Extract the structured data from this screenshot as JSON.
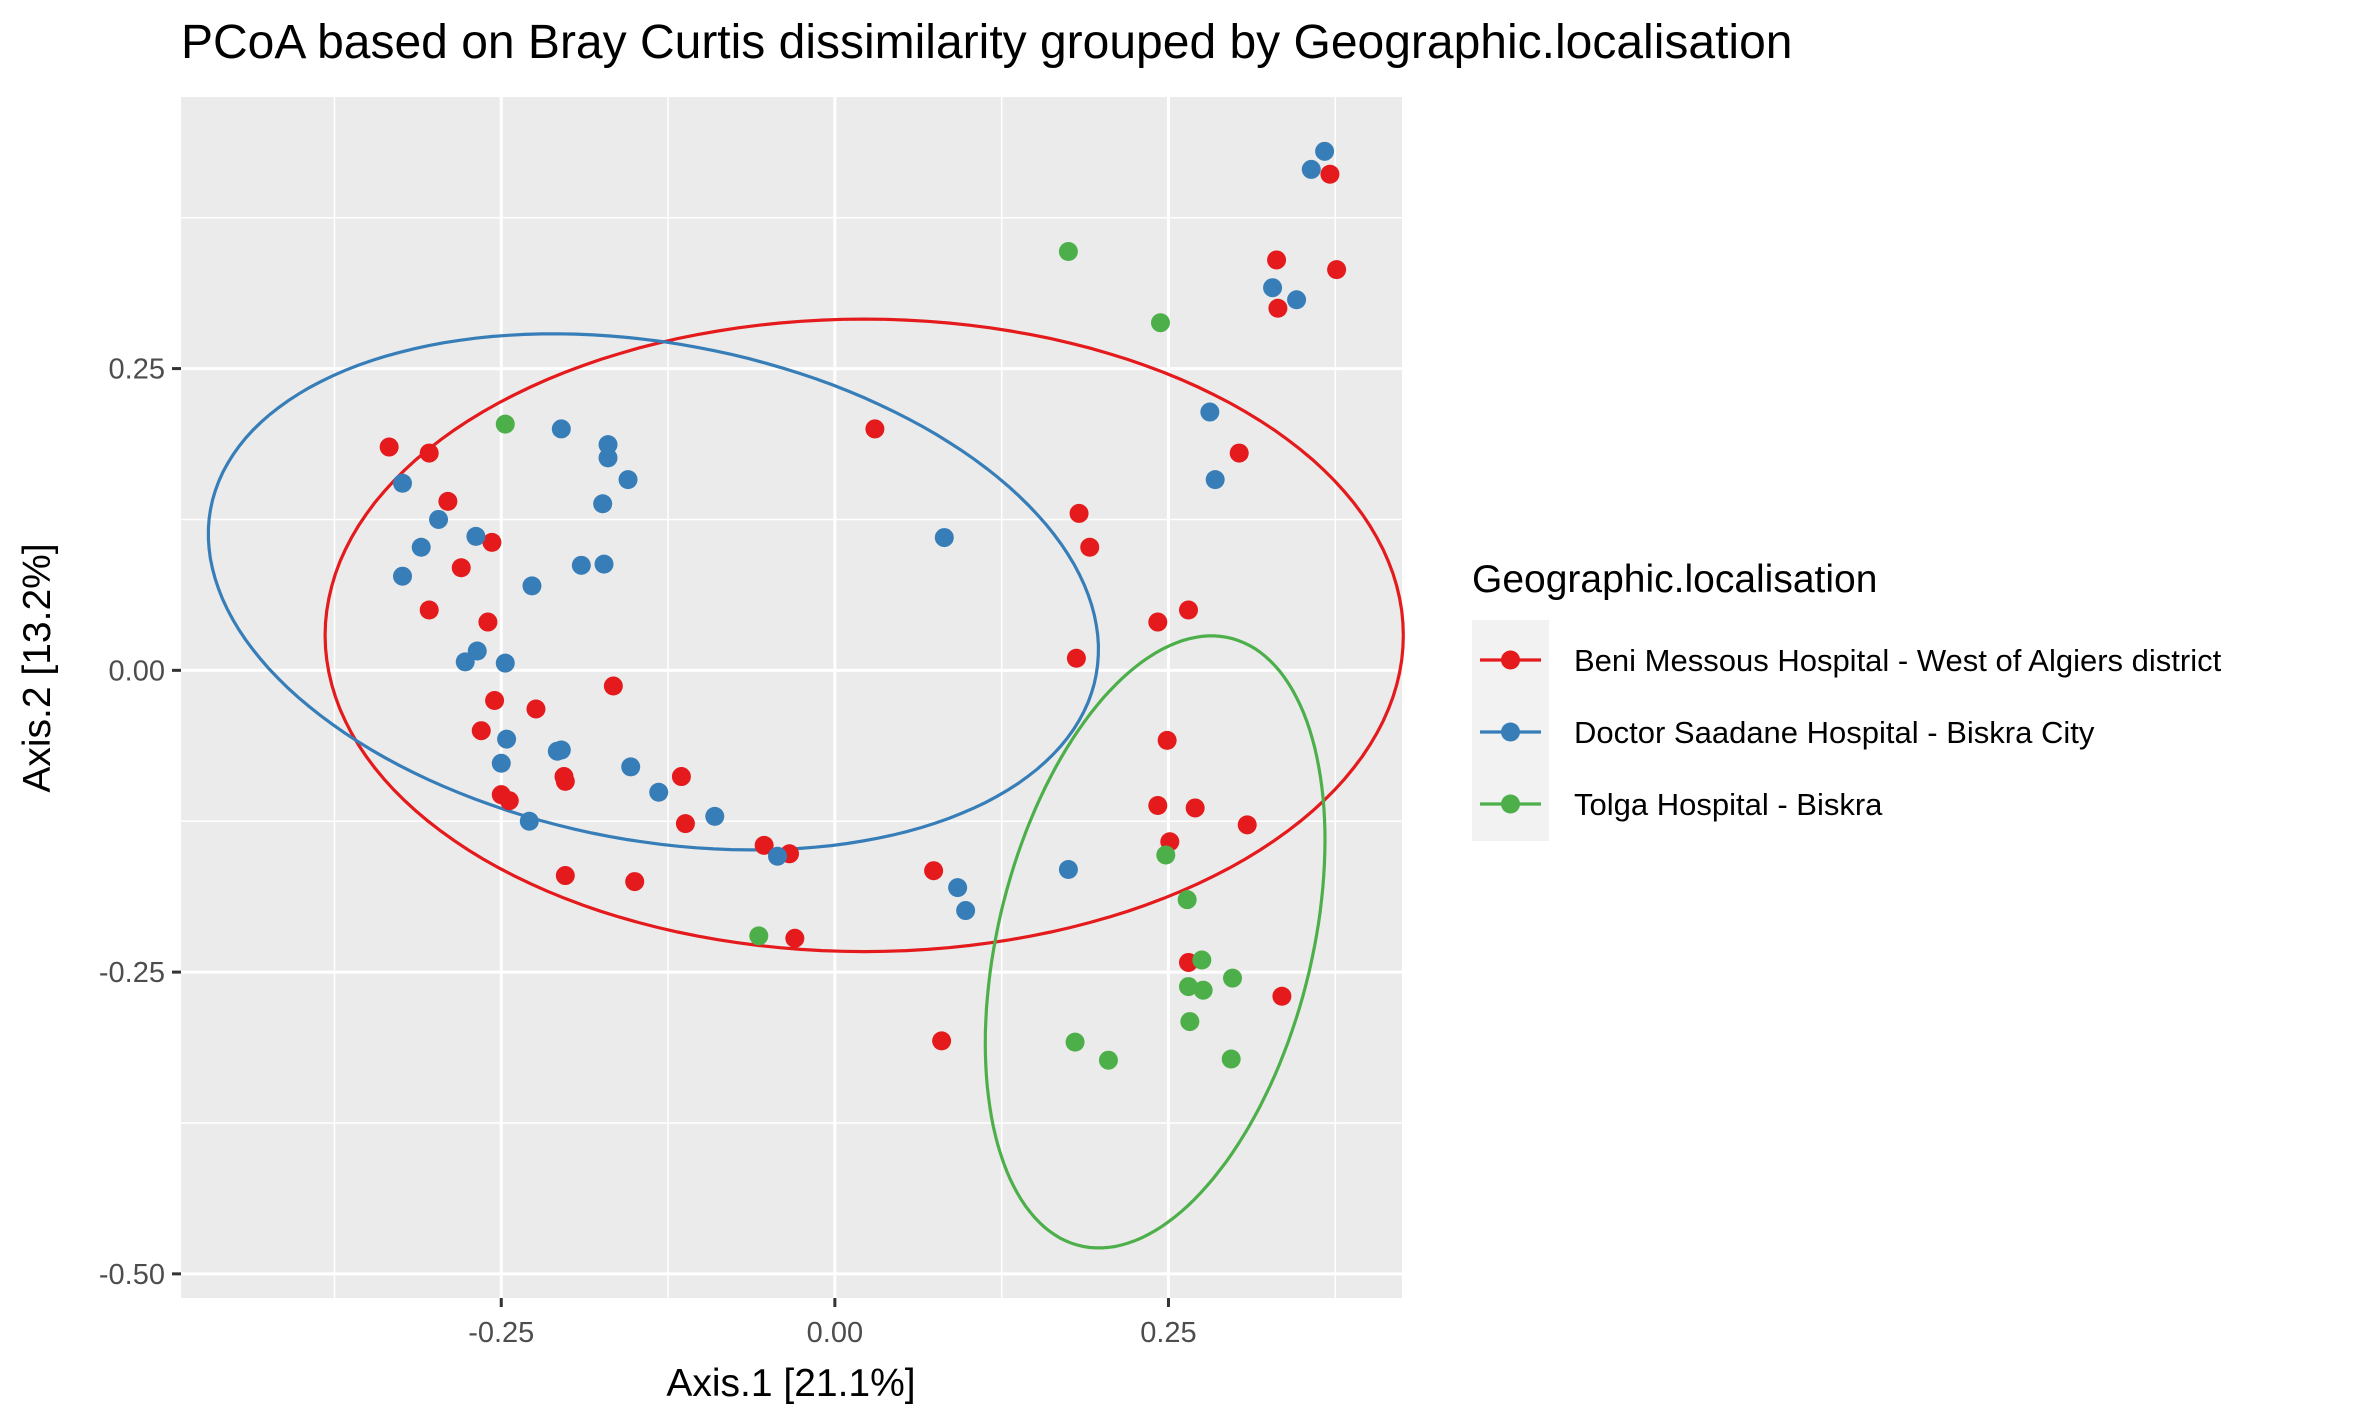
{
  "chart_data": {
    "type": "scatter",
    "title": "PCoA based on Bray Curtis dissimilarity grouped by Geographic.localisation",
    "xlabel": "Axis.1   [21.1%]",
    "ylabel": "Axis.2   [13.2%]",
    "xlim": [
      -0.49,
      0.425
    ],
    "ylim": [
      -0.52,
      0.475
    ],
    "x_ticks": [
      -0.25,
      0.0,
      0.25
    ],
    "x_tick_labels": [
      "-0.25",
      "0.00",
      "0.25"
    ],
    "y_ticks": [
      -0.5,
      -0.25,
      0.0,
      0.25
    ],
    "y_tick_labels": [
      "-0.50",
      "-0.25",
      "0.00",
      "0.25"
    ],
    "grid": true,
    "legend": {
      "title": "Geographic.localisation",
      "placement": "right"
    },
    "series": [
      {
        "name": "Beni Messous Hospital - West of Algiers district",
        "color": "#e41a1c",
        "points": [
          [
            -0.334,
            0.185
          ],
          [
            -0.304,
            0.18
          ],
          [
            -0.29,
            0.14
          ],
          [
            -0.257,
            0.106
          ],
          [
            -0.28,
            0.085
          ],
          [
            -0.304,
            0.05
          ],
          [
            -0.26,
            0.04
          ],
          [
            -0.166,
            -0.013
          ],
          [
            -0.255,
            -0.025
          ],
          [
            -0.224,
            -0.032
          ],
          [
            -0.265,
            -0.05
          ],
          [
            -0.25,
            -0.103
          ],
          [
            -0.244,
            -0.108
          ],
          [
            -0.203,
            -0.088
          ],
          [
            -0.202,
            -0.092
          ],
          [
            -0.115,
            -0.088
          ],
          [
            -0.112,
            -0.127
          ],
          [
            -0.053,
            -0.145
          ],
          [
            -0.034,
            -0.152
          ],
          [
            -0.202,
            -0.17
          ],
          [
            -0.15,
            -0.175
          ],
          [
            -0.03,
            -0.222
          ],
          [
            0.03,
            0.2
          ],
          [
            0.183,
            0.13
          ],
          [
            0.191,
            0.102
          ],
          [
            0.181,
            0.01
          ],
          [
            0.242,
            0.04
          ],
          [
            0.265,
            0.05
          ],
          [
            0.249,
            -0.058
          ],
          [
            0.242,
            -0.112
          ],
          [
            0.27,
            -0.114
          ],
          [
            0.309,
            -0.128
          ],
          [
            0.251,
            -0.142
          ],
          [
            0.303,
            0.18
          ],
          [
            0.074,
            -0.166
          ],
          [
            0.265,
            -0.242
          ],
          [
            0.335,
            -0.27
          ],
          [
            0.08,
            -0.307
          ],
          [
            0.331,
            0.34
          ],
          [
            0.332,
            0.3
          ],
          [
            0.371,
            0.411
          ],
          [
            0.376,
            0.332
          ]
        ]
      },
      {
        "name": "Doctor Saadane Hospital - Biskra City",
        "color": "#377eb8",
        "points": [
          [
            -0.324,
            0.155
          ],
          [
            -0.297,
            0.125
          ],
          [
            -0.31,
            0.102
          ],
          [
            -0.324,
            0.078
          ],
          [
            -0.269,
            0.111
          ],
          [
            -0.205,
            0.2
          ],
          [
            -0.17,
            0.187
          ],
          [
            -0.17,
            0.176
          ],
          [
            -0.155,
            0.158
          ],
          [
            -0.174,
            0.138
          ],
          [
            -0.19,
            0.087
          ],
          [
            -0.173,
            0.088
          ],
          [
            -0.227,
            0.07
          ],
          [
            -0.277,
            0.007
          ],
          [
            -0.268,
            0.016
          ],
          [
            -0.247,
            0.006
          ],
          [
            -0.246,
            -0.057
          ],
          [
            -0.208,
            -0.067
          ],
          [
            -0.205,
            -0.066
          ],
          [
            -0.25,
            -0.077
          ],
          [
            -0.153,
            -0.08
          ],
          [
            -0.132,
            -0.101
          ],
          [
            -0.09,
            -0.121
          ],
          [
            -0.229,
            -0.125
          ],
          [
            -0.043,
            -0.154
          ],
          [
            0.082,
            0.11
          ],
          [
            0.175,
            -0.165
          ],
          [
            0.092,
            -0.18
          ],
          [
            0.098,
            -0.199
          ],
          [
            0.281,
            0.214
          ],
          [
            0.285,
            0.158
          ],
          [
            0.328,
            0.317
          ],
          [
            0.346,
            0.307
          ],
          [
            0.357,
            0.415
          ],
          [
            0.367,
            0.43
          ]
        ]
      },
      {
        "name": "Tolga Hospital - Biskra",
        "color": "#4daf4a",
        "points": [
          [
            -0.247,
            0.204
          ],
          [
            0.175,
            0.347
          ],
          [
            0.244,
            0.288
          ],
          [
            -0.057,
            -0.22
          ],
          [
            0.248,
            -0.153
          ],
          [
            0.264,
            -0.19
          ],
          [
            0.275,
            -0.24
          ],
          [
            0.298,
            -0.255
          ],
          [
            0.265,
            -0.262
          ],
          [
            0.276,
            -0.265
          ],
          [
            0.266,
            -0.291
          ],
          [
            0.18,
            -0.308
          ],
          [
            0.205,
            -0.323
          ],
          [
            0.297,
            -0.322
          ]
        ]
      }
    ],
    "ellipses": [
      {
        "series": "Beni Messous Hospital - West of Algiers district",
        "color": "#e41a1c",
        "cx": 0.022,
        "cy": 0.029,
        "rx": 0.404,
        "ry": 0.262,
        "angle_deg": 0
      },
      {
        "series": "Doctor Saadane Hospital - Biskra City",
        "color": "#377eb8",
        "cx": -0.136,
        "cy": 0.065,
        "rx": 0.339,
        "ry": 0.205,
        "angle_deg": -13
      },
      {
        "series": "Tolga Hospital - Biskra",
        "color": "#4daf4a",
        "cx": 0.24,
        "cy": -0.225,
        "rx": 0.118,
        "ry": 0.258,
        "angle_deg": -12
      }
    ]
  }
}
